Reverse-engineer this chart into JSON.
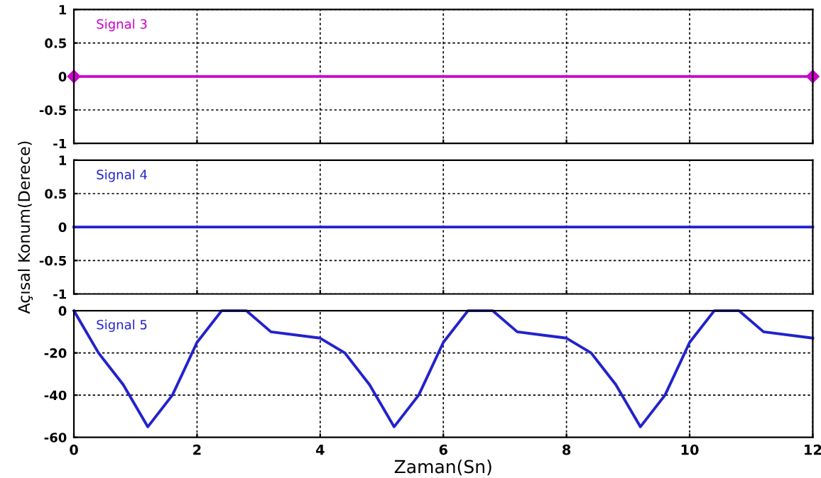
{
  "chart_data": [
    {
      "type": "line",
      "x": [
        0,
        12
      ],
      "xlim": [
        0,
        12
      ],
      "xticks": [
        0,
        2,
        4,
        6,
        8,
        10,
        12
      ],
      "ylim": [
        -1,
        1
      ],
      "yticks": [
        -1,
        -0.5,
        0,
        0.5,
        1
      ],
      "grid": true,
      "tick_labels": "y",
      "marker": "diamond",
      "line_style": "solid",
      "legend": false,
      "series": [
        {
          "name": "Signal 3",
          "color": "#cc00cc",
          "values": [
            0,
            0
          ]
        }
      ]
    },
    {
      "type": "line",
      "x": [
        0,
        12
      ],
      "xlim": [
        0,
        12
      ],
      "xticks": [
        0,
        2,
        4,
        6,
        8,
        10,
        12
      ],
      "ylim": [
        -1,
        1
      ],
      "yticks": [
        -1,
        -0.5,
        0,
        0.5,
        1
      ],
      "grid": true,
      "tick_labels": "y",
      "line_style": "solid",
      "legend": false,
      "ylabel": "Açısal Konum(Derece)",
      "series": [
        {
          "name": "Signal 4",
          "color": "#2222cc",
          "values": [
            0,
            0
          ]
        }
      ]
    },
    {
      "type": "line",
      "x": [
        0,
        0.4,
        0.8,
        1.2,
        1.6,
        2.0,
        2.4,
        2.8,
        3.2,
        4.0,
        4.4,
        4.8,
        5.2,
        5.6,
        6.0,
        6.4,
        6.8,
        7.2,
        8.0,
        8.4,
        8.8,
        9.2,
        9.6,
        10.0,
        10.4,
        10.8,
        11.2,
        12
      ],
      "xlim": [
        0,
        12
      ],
      "xticks": [
        0,
        2,
        4,
        6,
        8,
        10,
        12
      ],
      "ylim": [
        -60,
        0
      ],
      "yticks": [
        -60,
        -40,
        -20,
        0
      ],
      "grid": true,
      "line_style": "solid",
      "legend": false,
      "xlabel": "Zaman(Sn)",
      "series": [
        {
          "name": "Signal 5",
          "color": "#2222cc",
          "values": [
            0,
            -20,
            -35,
            -55,
            -40,
            -15,
            0,
            0,
            -10,
            -13,
            -20,
            -35,
            -55,
            -40,
            -15,
            0,
            0,
            -10,
            -13,
            -20,
            -35,
            -55,
            -40,
            -15,
            0,
            0,
            -10,
            -13
          ]
        }
      ]
    }
  ]
}
